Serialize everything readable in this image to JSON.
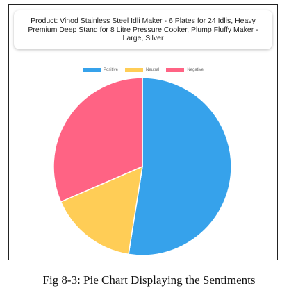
{
  "chart_data": {
    "type": "pie",
    "title": "Product: Vinod Stainless Steel Idli Maker - 6 Plates for 24 Idlis, Heavy Premium Deep Stand for 8 Litre Pressure Cooker, Plump Fluffy Maker - Large, Silver",
    "categories": [
      "Positive",
      "Neutral",
      "Negative"
    ],
    "values": [
      52.5,
      16,
      31.5
    ],
    "colors": [
      "#36a2eb",
      "#ffcd56",
      "#ff6384"
    ],
    "legend_position": "top"
  },
  "caption": "Fig 8-3: Pie Chart Displaying the Sentiments"
}
